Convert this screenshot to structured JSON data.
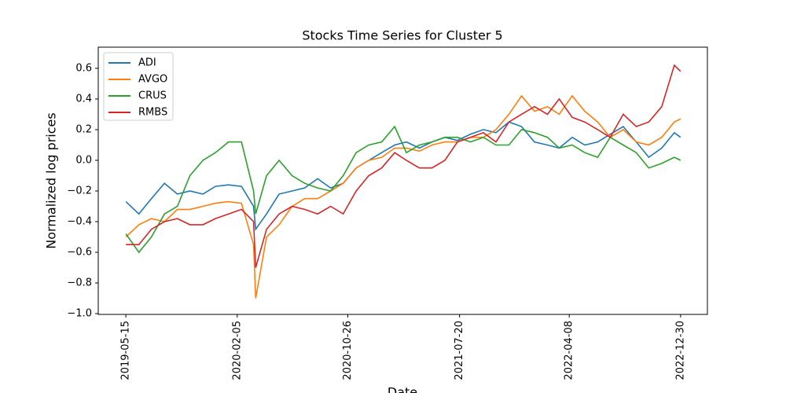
{
  "chart_data": {
    "type": "line",
    "title": "Stocks Time Series for Cluster 5",
    "x_label": "Date",
    "y_label": "Normalized log prices",
    "x": [
      "2019-05-15",
      "2019-06-15",
      "2019-07-15",
      "2019-08-15",
      "2019-09-15",
      "2019-10-15",
      "2019-11-15",
      "2019-12-15",
      "2020-01-15",
      "2020-02-15",
      "2020-03-15",
      "2020-03-20",
      "2020-04-15",
      "2020-05-15",
      "2020-06-15",
      "2020-07-15",
      "2020-08-15",
      "2020-09-15",
      "2020-10-15",
      "2020-11-15",
      "2020-12-15",
      "2021-01-15",
      "2021-02-15",
      "2021-03-15",
      "2021-04-15",
      "2021-05-15",
      "2021-06-15",
      "2021-07-15",
      "2021-08-15",
      "2021-09-15",
      "2021-10-15",
      "2021-11-15",
      "2021-12-15",
      "2022-01-15",
      "2022-02-15",
      "2022-03-15",
      "2022-04-15",
      "2022-05-15",
      "2022-06-15",
      "2022-07-15",
      "2022-08-15",
      "2022-09-15",
      "2022-10-15",
      "2022-11-15",
      "2022-12-15",
      "2022-12-30"
    ],
    "series": [
      {
        "name": "ADI",
        "color": "#1f77b4",
        "values": [
          -0.27,
          -0.35,
          -0.25,
          -0.15,
          -0.22,
          -0.2,
          -0.22,
          -0.17,
          -0.16,
          -0.17,
          -0.3,
          -0.45,
          -0.35,
          -0.22,
          -0.2,
          -0.18,
          -0.12,
          -0.18,
          -0.15,
          -0.05,
          0.0,
          0.05,
          0.1,
          0.12,
          0.08,
          0.12,
          0.15,
          0.13,
          0.17,
          0.2,
          0.18,
          0.25,
          0.22,
          0.12,
          0.1,
          0.08,
          0.15,
          0.1,
          0.12,
          0.17,
          0.22,
          0.12,
          0.02,
          0.08,
          0.18,
          0.15
        ]
      },
      {
        "name": "AVGO",
        "color": "#ff7f0e",
        "values": [
          -0.5,
          -0.42,
          -0.38,
          -0.4,
          -0.32,
          -0.32,
          -0.3,
          -0.28,
          -0.27,
          -0.28,
          -0.55,
          -0.9,
          -0.5,
          -0.42,
          -0.3,
          -0.25,
          -0.25,
          -0.2,
          -0.15,
          -0.05,
          0.0,
          0.02,
          0.08,
          0.08,
          0.06,
          0.1,
          0.12,
          0.12,
          0.15,
          0.15,
          0.2,
          0.3,
          0.42,
          0.32,
          0.35,
          0.3,
          0.42,
          0.32,
          0.25,
          0.15,
          0.2,
          0.12,
          0.1,
          0.15,
          0.25,
          0.27
        ]
      },
      {
        "name": "CRUS",
        "color": "#2ca02c",
        "values": [
          -0.48,
          -0.6,
          -0.5,
          -0.35,
          -0.3,
          -0.1,
          0.0,
          0.05,
          0.12,
          0.12,
          -0.2,
          -0.35,
          -0.1,
          0.0,
          -0.1,
          -0.15,
          -0.18,
          -0.2,
          -0.1,
          0.05,
          0.1,
          0.12,
          0.22,
          0.05,
          0.1,
          0.12,
          0.15,
          0.15,
          0.12,
          0.15,
          0.1,
          0.1,
          0.2,
          0.18,
          0.15,
          0.08,
          0.1,
          0.05,
          0.02,
          0.15,
          0.1,
          0.05,
          -0.05,
          -0.02,
          0.02,
          0.0
        ]
      },
      {
        "name": "RMBS",
        "color": "#d62728",
        "values": [
          -0.55,
          -0.55,
          -0.45,
          -0.4,
          -0.38,
          -0.42,
          -0.42,
          -0.38,
          -0.35,
          -0.32,
          -0.4,
          -0.7,
          -0.45,
          -0.35,
          -0.3,
          -0.32,
          -0.35,
          -0.3,
          -0.35,
          -0.2,
          -0.1,
          -0.05,
          0.05,
          0.0,
          -0.05,
          -0.05,
          0.0,
          0.12,
          0.15,
          0.18,
          0.12,
          0.25,
          0.3,
          0.35,
          0.3,
          0.4,
          0.28,
          0.25,
          0.2,
          0.15,
          0.3,
          0.22,
          0.25,
          0.35,
          0.62,
          0.58
        ]
      }
    ],
    "xlim": [
      "2019-03-10",
      "2023-03-04"
    ],
    "xticks": [
      "2019-05-15",
      "2020-02-05",
      "2020-10-26",
      "2021-07-20",
      "2022-04-08",
      "2022-12-30"
    ],
    "ylim": [
      -1.005,
      0.738
    ],
    "yticks": [
      {
        "value": -1.0,
        "label": "−1.0"
      },
      {
        "value": -0.8,
        "label": "−0.8"
      },
      {
        "value": -0.6,
        "label": "−0.6"
      },
      {
        "value": -0.4,
        "label": "−0.4"
      },
      {
        "value": -0.2,
        "label": "−0.2"
      },
      {
        "value": 0.0,
        "label": "0.0"
      },
      0.2,
      0.4,
      0.6
    ],
    "legend": "upper-left"
  }
}
